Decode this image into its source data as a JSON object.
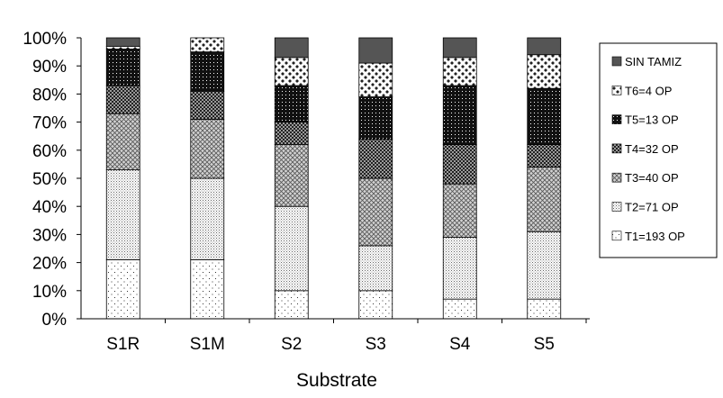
{
  "chart_data": {
    "type": "bar",
    "stacked": true,
    "percent_stacked": true,
    "xlabel": "Substrate",
    "ylabel": "",
    "ylim": [
      0,
      100
    ],
    "yticks": [
      "0%",
      "10%",
      "20%",
      "30%",
      "40%",
      "50%",
      "60%",
      "70%",
      "80%",
      "90%",
      "100%"
    ],
    "categories": [
      "S1R",
      "S1M",
      "S2",
      "S3",
      "S4",
      "S5"
    ],
    "legend_position": "right",
    "grid": false,
    "series": [
      {
        "name": "T1=193 OP",
        "pattern": "sparse-dots",
        "values": [
          21,
          21,
          10,
          10,
          7,
          7
        ]
      },
      {
        "name": "T2=71 OP",
        "pattern": "fine-dots",
        "values": [
          32,
          29,
          30,
          16,
          22,
          24
        ]
      },
      {
        "name": "T3=40 OP",
        "pattern": "cross-hatch",
        "values": [
          20,
          21,
          22,
          24,
          19,
          23
        ]
      },
      {
        "name": "T4=32 OP",
        "pattern": "dense-check",
        "values": [
          10,
          10,
          8,
          14,
          14,
          8
        ]
      },
      {
        "name": "T5=13 OP",
        "pattern": "black-dots",
        "values": [
          13,
          14,
          13,
          15,
          21,
          20
        ]
      },
      {
        "name": "T6=4 OP",
        "pattern": "white-diamonds",
        "values": [
          1,
          5,
          10,
          12,
          10,
          12
        ]
      },
      {
        "name": "SIN TAMIZ",
        "pattern": "solid-gray",
        "values": [
          3,
          0,
          7,
          9,
          7,
          6
        ]
      }
    ]
  }
}
